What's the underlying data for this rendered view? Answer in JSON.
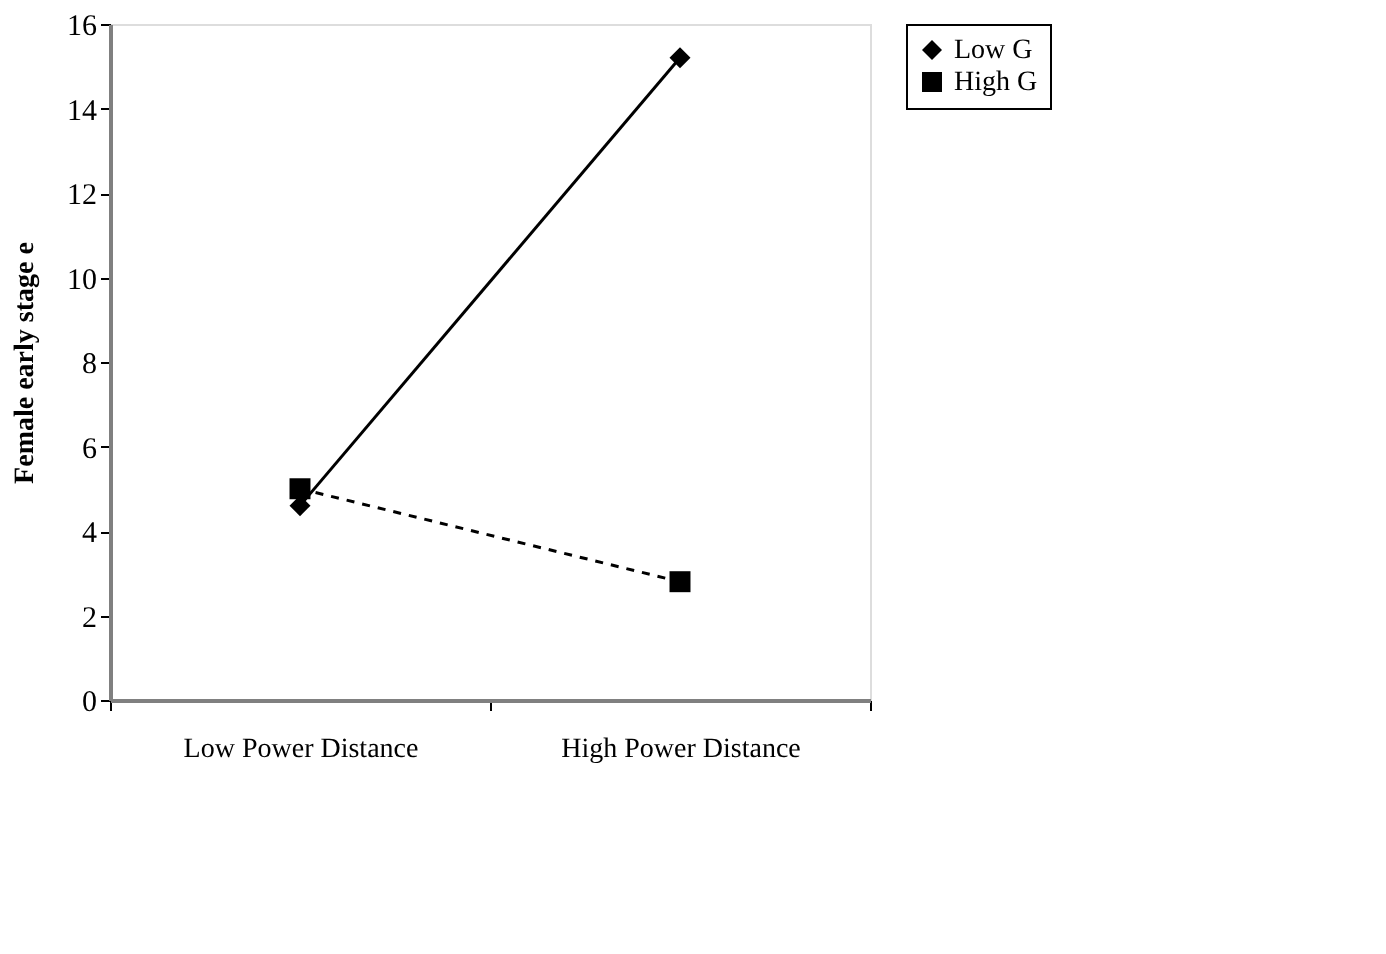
{
  "chart_data": {
    "type": "line",
    "ylabel": "Female early stage e",
    "categories": [
      "Low Power Distance",
      "High Power Distance"
    ],
    "series": [
      {
        "name": "Low G",
        "color": "#000000",
        "values": [
          4.6,
          15.2
        ],
        "marker": "diamond",
        "line_style": "solid"
      },
      {
        "name": "High G",
        "color": "#000000",
        "values": [
          5.0,
          2.8
        ],
        "marker": "square",
        "line_style": "dashed"
      }
    ],
    "ylim": [
      0,
      16
    ],
    "yticks": [
      0,
      2,
      4,
      6,
      8,
      10,
      12,
      14,
      16
    ],
    "grid": false,
    "legend": "right"
  }
}
